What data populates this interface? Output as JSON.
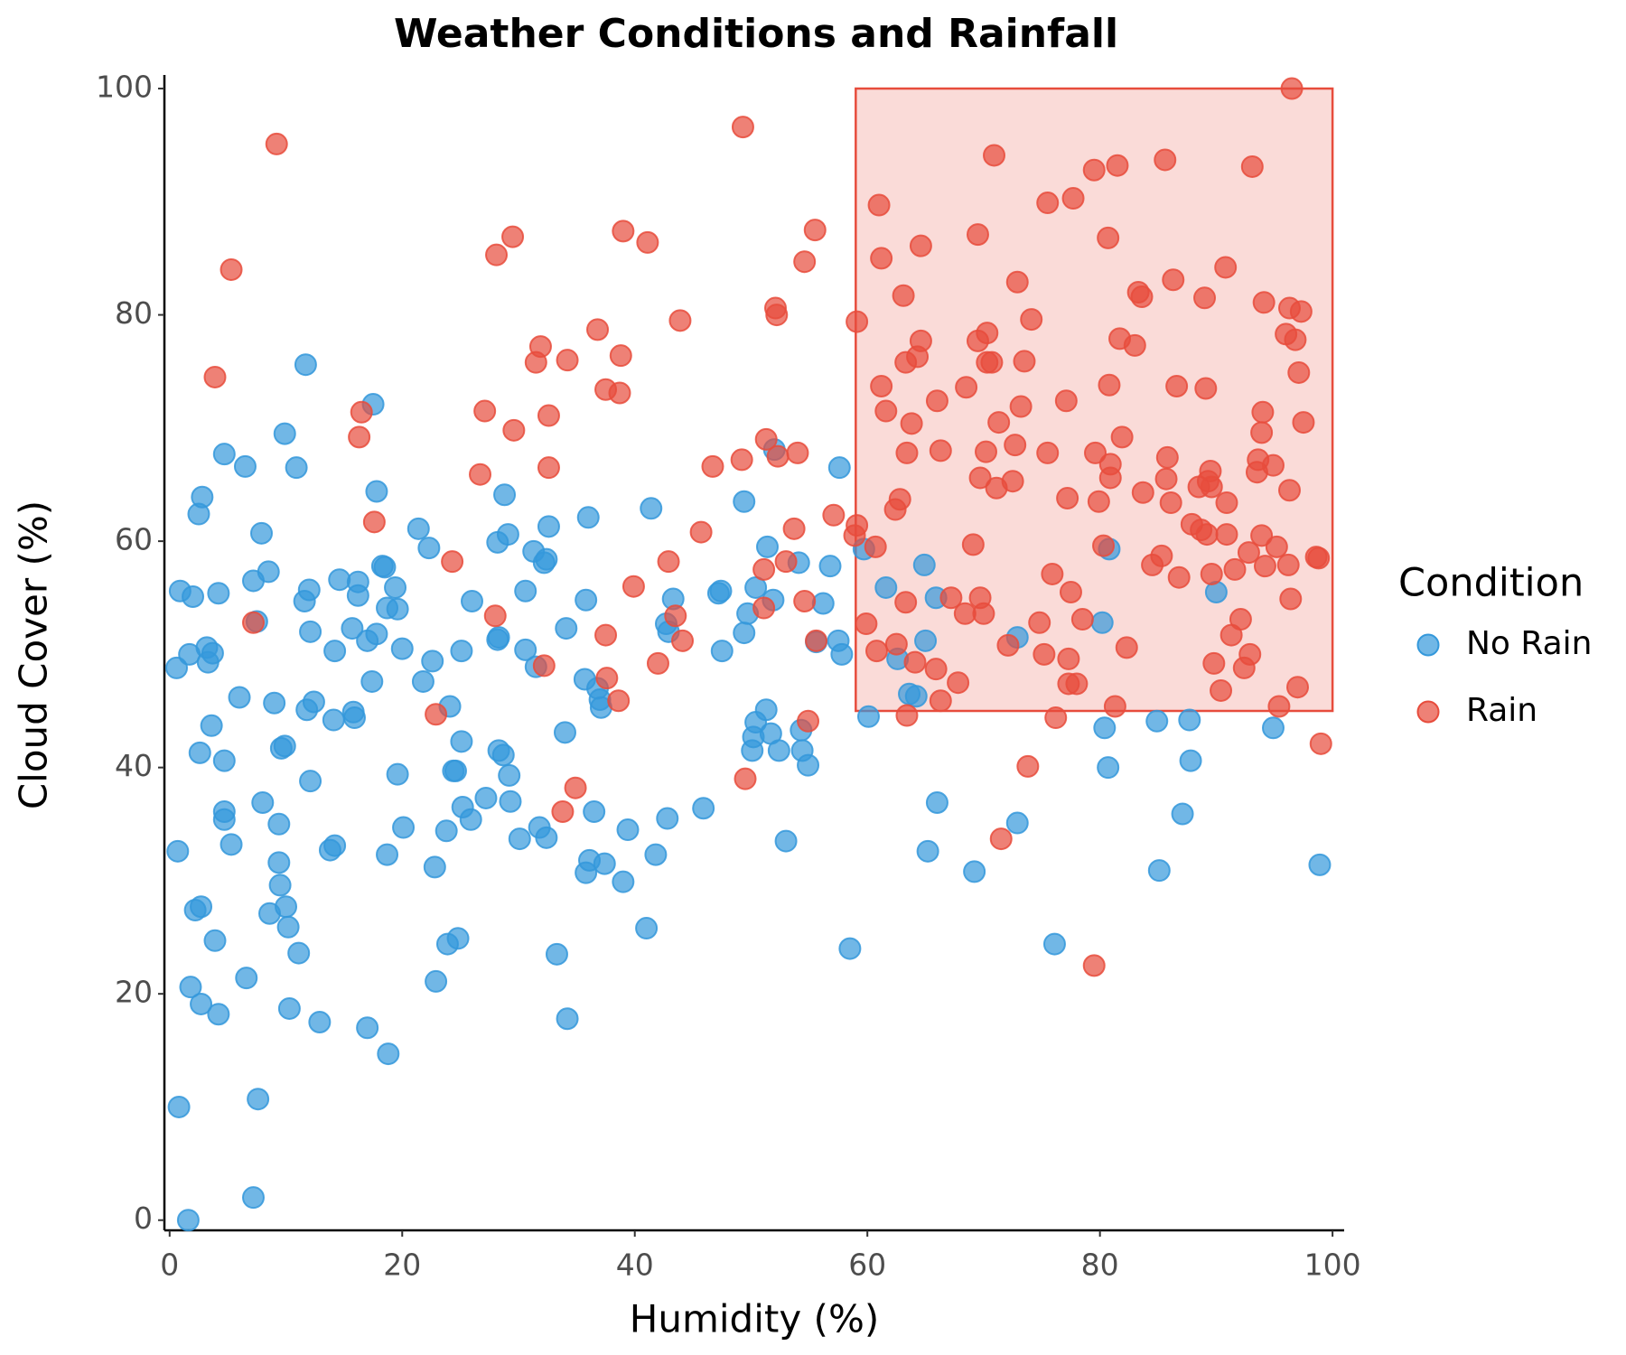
{
  "chart_data": {
    "type": "scatter",
    "title": "Weather Conditions and Rainfall",
    "x_label": "Humidity (%)",
    "y_label": "Cloud Cover (%)",
    "xlim": [
      -0.45,
      101
    ],
    "ylim": [
      -0.9,
      101.2
    ],
    "xticks": [
      0,
      20,
      40,
      60,
      80,
      100
    ],
    "yticks": [
      0,
      20,
      40,
      60,
      80,
      100
    ],
    "grid": false,
    "legend_title": "Condition",
    "legend_position": "right",
    "annotation": {
      "x": [
        59,
        100
      ],
      "y": [
        45,
        100
      ],
      "color": "#e74c3c"
    },
    "series": [
      {
        "name": "No Rain",
        "color": "#3498db",
        "x": [
          0.6,
          0.9,
          0.7,
          0.8,
          1.6,
          1.7,
          2.0,
          1.8,
          2.2,
          2.7,
          2.5,
          2.8,
          2.6,
          2.7,
          3.2,
          3.3,
          3.7,
          3.6,
          3.9,
          4.2,
          4.2,
          4.7,
          4.7,
          4.7,
          4.7,
          5.3,
          6.0,
          6.5,
          6.6,
          7.2,
          7.2,
          7.5,
          7.6,
          7.9,
          8.0,
          8.5,
          8.6,
          9.0,
          9.4,
          9.4,
          9.5,
          9.6,
          9.9,
          9.9,
          10.0,
          10.2,
          10.3,
          10.9,
          11.1,
          11.6,
          11.7,
          11.8,
          12.0,
          12.1,
          12.1,
          12.4,
          12.9,
          13.8,
          14.2,
          14.1,
          14.2,
          14.6,
          15.7,
          15.8,
          15.9,
          16.2,
          16.2,
          17.0,
          17.0,
          17.4,
          17.5,
          17.8,
          17.8,
          18.3,
          18.5,
          18.8,
          18.7,
          18.7,
          19.4,
          19.6,
          19.6,
          20.0,
          20.1,
          21.4,
          21.8,
          22.3,
          22.6,
          22.8,
          22.9,
          23.8,
          23.9,
          24.1,
          24.4,
          24.6,
          24.8,
          25.1,
          25.1,
          25.2,
          25.9,
          26.0,
          27.2,
          28.2,
          28.2,
          28.3,
          28.3,
          28.7,
          28.8,
          29.1,
          29.2,
          29.3,
          30.1,
          30.6,
          30.6,
          31.3,
          31.5,
          31.8,
          32.2,
          32.4,
          32.4,
          32.6,
          33.3,
          34.0,
          34.1,
          34.2,
          35.7,
          35.8,
          35.8,
          36.0,
          36.1,
          36.5,
          36.8,
          37.0,
          37.1,
          37.4,
          39.0,
          39.4,
          41.0,
          41.4,
          41.8,
          42.7,
          42.9,
          42.8,
          43.3,
          45.9,
          47.2,
          47.4,
          47.5,
          49.4,
          49.4,
          49.7,
          50.1,
          50.2,
          50.4,
          50.4,
          51.3,
          51.4,
          51.7,
          51.9,
          52.0,
          52.4,
          53.0,
          54.1,
          54.3,
          54.4,
          54.9,
          55.6,
          56.2,
          56.8,
          57.6,
          57.5,
          57.8,
          58.5,
          59.7,
          60.1,
          61.6,
          62.6,
          63.6,
          64.2,
          64.9,
          65.0,
          65.2,
          65.9,
          66.0,
          69.2,
          72.9,
          72.9,
          76.1,
          80.2,
          80.4,
          80.7,
          80.8,
          84.9,
          85.1,
          87.1,
          87.7,
          87.8,
          90.0,
          94.9,
          98.9
        ],
        "values": [
          48.8,
          55.6,
          32.6,
          10.0,
          0,
          50.0,
          55.1,
          20.6,
          27.4,
          27.7,
          62.4,
          63.9,
          41.3,
          19.1,
          50.6,
          49.3,
          50.1,
          43.7,
          24.7,
          18.2,
          55.4,
          67.7,
          40.6,
          36.1,
          35.4,
          33.2,
          46.2,
          66.6,
          21.4,
          2.0,
          56.5,
          52.9,
          10.7,
          60.7,
          36.9,
          57.3,
          27.1,
          45.7,
          35.0,
          31.6,
          29.6,
          41.7,
          69.5,
          41.9,
          27.7,
          25.9,
          18.7,
          66.5,
          23.6,
          54.7,
          75.6,
          45.1,
          55.7,
          52.0,
          38.8,
          45.8,
          17.5,
          32.7,
          33.1,
          44.2,
          50.3,
          56.6,
          52.3,
          44.9,
          44.4,
          56.4,
          55.2,
          17.0,
          51.2,
          47.6,
          72.1,
          64.4,
          51.8,
          57.8,
          57.7,
          14.7,
          32.3,
          54.1,
          55.9,
          54.0,
          39.4,
          50.5,
          34.7,
          61.1,
          47.6,
          59.4,
          49.4,
          31.2,
          21.1,
          34.4,
          24.4,
          45.4,
          39.7,
          39.7,
          24.9,
          42.3,
          50.3,
          36.5,
          35.4,
          54.7,
          37.3,
          51.3,
          59.9,
          51.5,
          41.5,
          41.1,
          64.1,
          60.6,
          39.3,
          37.0,
          33.7,
          50.4,
          55.6,
          59.1,
          48.9,
          34.7,
          58.1,
          58.4,
          33.8,
          61.3,
          23.5,
          43.1,
          52.3,
          17.8,
          47.8,
          54.8,
          30.7,
          62.1,
          31.8,
          36.1,
          47.0,
          46.0,
          45.3,
          31.5,
          29.9,
          34.5,
          25.8,
          62.9,
          32.3,
          52.7,
          52.0,
          35.5,
          54.9,
          36.4,
          55.4,
          55.6,
          50.3,
          63.5,
          51.9,
          53.6,
          41.5,
          42.7,
          55.9,
          44.0,
          45.1,
          59.5,
          43.0,
          54.8,
          68.1,
          41.5,
          33.5,
          58.1,
          43.3,
          41.5,
          40.2,
          51.1,
          54.5,
          57.8,
          66.5,
          51.2,
          50.0,
          24.0,
          59.3,
          44.5,
          55.9,
          49.6,
          46.5,
          46.3,
          57.9,
          51.2,
          32.6,
          55.0,
          36.9,
          30.8,
          51.5,
          35.1,
          24.4,
          52.8,
          43.5,
          40.0,
          59.3,
          44.1,
          30.9,
          35.9,
          44.2,
          40.6,
          55.5,
          43.5,
          31.4
        ]
      },
      {
        "name": "Rain",
        "color": "#e74c3c",
        "x": [
          5.3,
          3.9,
          9.2,
          7.2,
          16.3,
          16.5,
          17.6,
          22.9,
          24.3,
          26.7,
          27.1,
          28.1,
          28.0,
          29.5,
          29.6,
          31.5,
          31.9,
          32.2,
          32.6,
          32.6,
          33.8,
          34.2,
          34.9,
          36.8,
          37.5,
          37.6,
          37.5,
          38.7,
          38.6,
          38.8,
          39.0,
          39.9,
          41.1,
          42.0,
          42.9,
          43.5,
          44.1,
          43.9,
          45.7,
          46.7,
          49.2,
          49.3,
          49.5,
          51.1,
          51.3,
          51.1,
          52.1,
          52.2,
          52.3,
          53.0,
          53.7,
          54.0,
          54.6,
          54.6,
          54.9,
          55.5,
          55.6,
          57.1,
          59.1,
          59.1,
          58.9,
          59.9,
          60.7,
          60.8,
          61.0,
          61.2,
          61.2,
          61.6,
          62.4,
          62.5,
          62.8,
          63.1,
          63.3,
          63.4,
          63.3,
          63.4,
          63.8,
          64.1,
          64.3,
          64.6,
          64.6,
          65.9,
          66.0,
          66.3,
          66.3,
          67.2,
          67.8,
          68.4,
          68.5,
          69.1,
          69.5,
          69.5,
          69.7,
          69.7,
          70.0,
          70.2,
          70.3,
          70.3,
          70.7,
          70.9,
          71.1,
          71.3,
          71.5,
          72.1,
          72.5,
          72.7,
          72.9,
          73.2,
          73.5,
          73.8,
          74.1,
          74.8,
          75.2,
          75.5,
          75.5,
          75.9,
          76.2,
          77.1,
          77.2,
          77.3,
          77.3,
          77.5,
          77.7,
          78.0,
          78.5,
          79.6,
          79.5,
          79.5,
          79.9,
          80.3,
          80.7,
          80.8,
          80.9,
          80.9,
          81.3,
          81.5,
          81.7,
          81.9,
          82.3,
          83.0,
          83.3,
          83.6,
          83.7,
          84.5,
          85.3,
          85.6,
          85.7,
          85.8,
          86.1,
          86.3,
          86.6,
          86.8,
          87.9,
          88.5,
          88.7,
          89.1,
          89.0,
          89.2,
          89.3,
          89.5,
          89.6,
          89.6,
          89.8,
          90.4,
          90.8,
          90.9,
          90.9,
          91.3,
          91.6,
          92.1,
          92.4,
          92.8,
          92.9,
          93.1,
          93.5,
          93.6,
          93.9,
          93.9,
          94.0,
          94.1,
          94.2,
          94.9,
          95.2,
          95.4,
          96.0,
          96.2,
          96.3,
          96.3,
          96.4,
          96.5,
          96.8,
          97.0,
          97.1,
          97.3,
          97.5,
          98.6,
          98.8,
          99.0
        ],
        "values": [
          84.0,
          74.5,
          95.1,
          52.8,
          69.2,
          71.4,
          61.7,
          44.7,
          58.2,
          65.9,
          71.5,
          85.3,
          53.4,
          86.9,
          69.8,
          75.8,
          77.2,
          49.0,
          71.1,
          66.5,
          36.1,
          76.0,
          38.2,
          78.7,
          51.7,
          47.9,
          73.4,
          73.1,
          45.9,
          76.4,
          87.4,
          56.0,
          86.4,
          49.2,
          58.2,
          53.4,
          51.2,
          79.5,
          60.8,
          66.6,
          67.2,
          96.6,
          39.0,
          57.5,
          69.0,
          54.1,
          80.6,
          80.0,
          67.5,
          58.2,
          61.1,
          67.8,
          84.7,
          54.7,
          44.1,
          87.5,
          51.2,
          62.3,
          79.4,
          61.4,
          60.5,
          52.7,
          59.5,
          50.3,
          89.7,
          85.0,
          73.7,
          71.5,
          62.8,
          50.9,
          63.7,
          81.7,
          54.6,
          44.6,
          75.8,
          67.8,
          70.4,
          49.3,
          76.3,
          86.1,
          77.7,
          48.7,
          72.4,
          45.9,
          68.0,
          55.0,
          47.5,
          53.6,
          73.6,
          59.7,
          87.1,
          77.7,
          65.6,
          55.0,
          53.6,
          67.9,
          78.4,
          75.8,
          75.8,
          94.1,
          64.7,
          70.5,
          33.7,
          50.8,
          65.3,
          68.5,
          82.9,
          71.9,
          75.9,
          40.1,
          79.6,
          52.8,
          50.0,
          89.9,
          67.8,
          57.1,
          44.4,
          72.4,
          63.8,
          49.6,
          47.4,
          55.5,
          90.3,
          47.4,
          53.1,
          67.8,
          22.5,
          92.8,
          63.5,
          59.6,
          86.8,
          73.8,
          66.8,
          65.6,
          45.4,
          93.2,
          77.9,
          69.2,
          50.6,
          77.3,
          82.0,
          81.6,
          64.3,
          57.9,
          58.7,
          93.7,
          65.5,
          67.4,
          63.4,
          83.1,
          73.7,
          56.8,
          61.5,
          64.8,
          61.0,
          73.5,
          81.5,
          60.6,
          65.3,
          66.2,
          64.8,
          57.1,
          49.2,
          46.8,
          84.2,
          63.4,
          60.6,
          51.7,
          57.5,
          53.1,
          48.8,
          59.0,
          50.0,
          93.1,
          66.1,
          67.2,
          69.6,
          60.5,
          71.4,
          81.1,
          57.8,
          66.7,
          59.5,
          45.4,
          78.3,
          57.9,
          64.5,
          80.6,
          54.9,
          100.0,
          77.8,
          47.1,
          74.9,
          80.3,
          70.5,
          58.6,
          58.5,
          42.1
        ]
      }
    ]
  }
}
